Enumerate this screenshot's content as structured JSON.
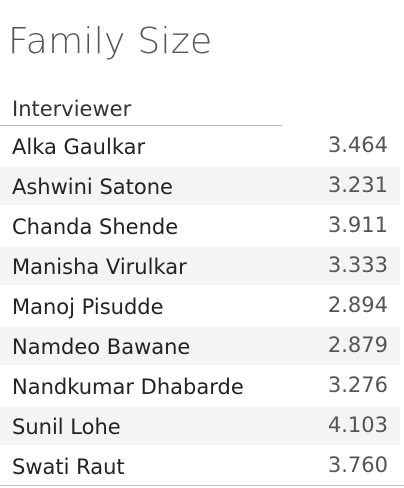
{
  "chart_data": {
    "type": "table",
    "title": "Family Size",
    "columns": [
      "Interviewer",
      ""
    ],
    "categories": [
      "Alka Gaulkar",
      "Ashwini Satone",
      "Chanda Shende",
      "Manisha Virulkar",
      "Manoj Pisudde",
      "Namdeo Bawane",
      "Nandkumar Dhabarde",
      "Sunil Lohe",
      "Swati Raut"
    ],
    "values": [
      "3.464",
      "3.231",
      "3.911",
      "3.333",
      "2.894",
      "2.879",
      "3.276",
      "4.103",
      "3.760"
    ]
  },
  "colors": {
    "row_band": "#f4f4f4",
    "text": "#222222",
    "value_text": "#555555",
    "rule": "#b8b8b8"
  }
}
